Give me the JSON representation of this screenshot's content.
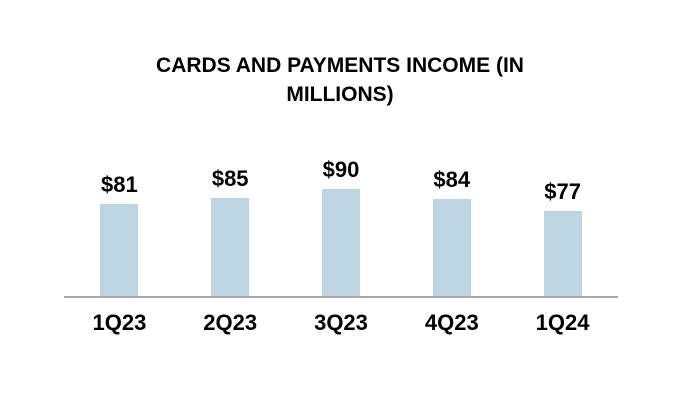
{
  "chart_data": {
    "type": "bar",
    "title": "CARDS AND PAYMENTS INCOME (IN\nMILLIONS)",
    "categories": [
      "1Q23",
      "2Q23",
      "3Q23",
      "4Q23",
      "1Q24"
    ],
    "values": [
      81,
      85,
      90,
      84,
      77
    ],
    "value_labels": [
      "$81",
      "$85",
      "$90",
      "$84",
      "$77"
    ],
    "xlabel": "",
    "ylabel": "",
    "grid": false,
    "legend": false,
    "value_labels_shown": true,
    "colors": {
      "bar_fill": "#BDD4E2",
      "axis_line": "#A6A6A6",
      "text": "#000000",
      "background": "#FFFFFF"
    }
  }
}
